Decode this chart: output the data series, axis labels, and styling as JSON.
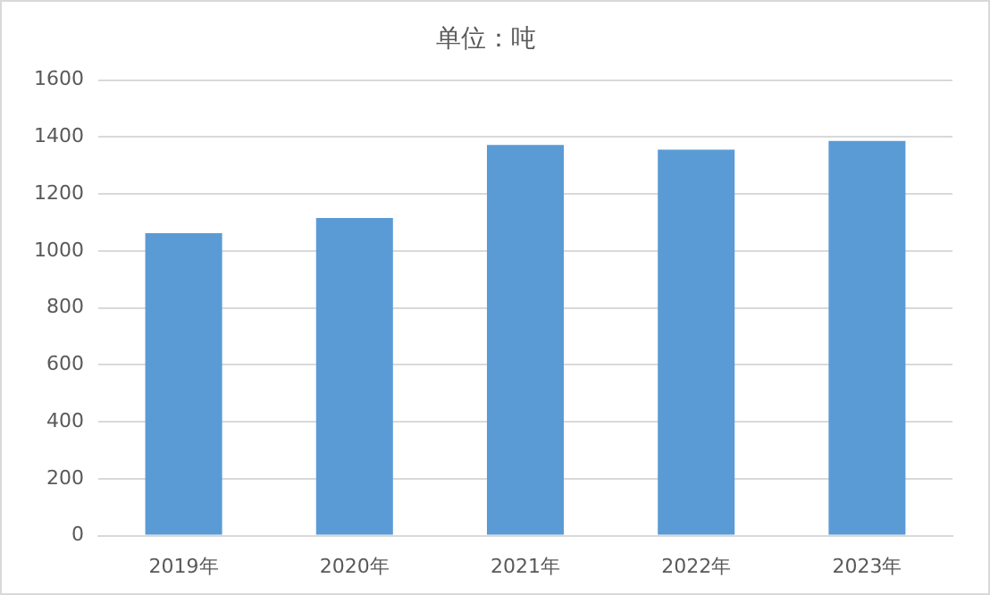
{
  "chart_data": {
    "type": "bar",
    "title": "单位：吨",
    "categories": [
      "2019年",
      "2020年",
      "2021年",
      "2022年",
      "2023年"
    ],
    "values": [
      1062,
      1116,
      1372,
      1356,
      1386
    ],
    "color": "#5b9bd5",
    "ylim": [
      0,
      1600
    ],
    "yticks": [
      0,
      200,
      400,
      600,
      800,
      1000,
      1200,
      1400,
      1600
    ],
    "grid": "y",
    "legend": false
  }
}
